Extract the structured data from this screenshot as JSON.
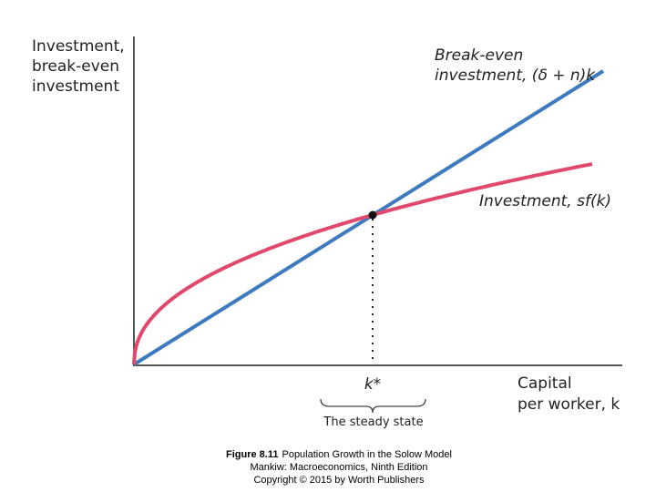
{
  "y_axis_label": [
    "Investment,",
    "break-even",
    "investment"
  ],
  "x_axis_label": [
    "Capital",
    "per worker, k"
  ],
  "break_even_label": [
    "Break-even",
    "investment, (δ + n)k"
  ],
  "investment_label": "Investment, sf(k)",
  "steady_state_symbol": "k*",
  "steady_state_label": "The steady state",
  "caption": {
    "figure": "Figure 8.11",
    "title": "Population Growth in the Solow Model",
    "lines": [
      "Mankiw: Macroeconomics, Ninth Edition",
      "Copyright © 2015 by Worth Publishers"
    ]
  }
}
